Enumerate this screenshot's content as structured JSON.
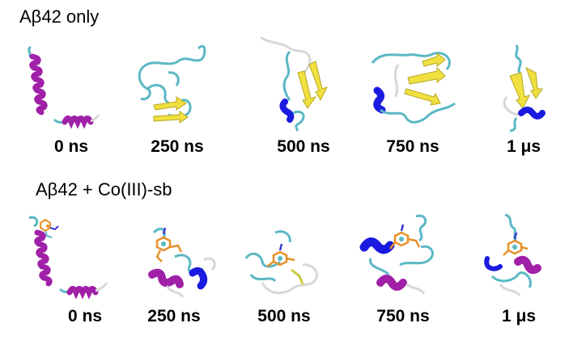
{
  "rows": [
    {
      "title": "Aβ42 only",
      "snapshots": [
        {
          "time": "0 ns"
        },
        {
          "time": "250 ns"
        },
        {
          "time": "500 ns"
        },
        {
          "time": "750 ns"
        },
        {
          "time": "1 μs"
        }
      ]
    },
    {
      "title": "Aβ42 + Co(III)-sb",
      "snapshots": [
        {
          "time": "0 ns"
        },
        {
          "time": "250 ns"
        },
        {
          "time": "500 ns"
        },
        {
          "time": "750 ns"
        },
        {
          "time": "1 μs"
        }
      ]
    }
  ],
  "colors": {
    "coil": "#5bb8c4",
    "turn": "#d8d8d8",
    "alpha_helix": "#a020a8",
    "three_ten_helix": "#1a1ae0",
    "beta_strand": "#f0e040",
    "ligand": "#e89028"
  }
}
